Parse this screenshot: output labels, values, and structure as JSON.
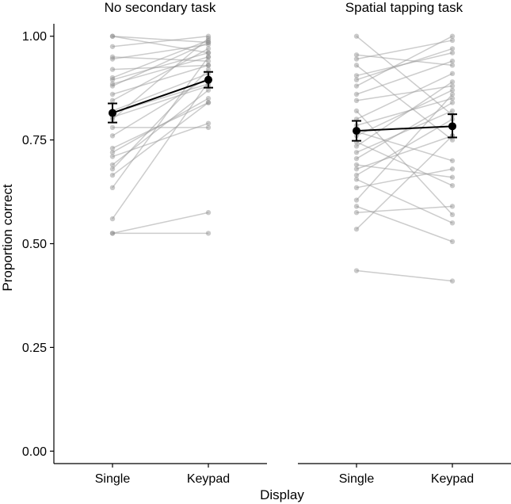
{
  "chart_data": {
    "type": "line",
    "x_title": "Display",
    "y_title": "Proportion correct",
    "categories": [
      "Single",
      "Keypad"
    ],
    "y_ticks": [
      0.0,
      0.25,
      0.5,
      0.75,
      1.0
    ],
    "y_tick_labels": [
      "0.00",
      "0.25",
      "0.50",
      "0.75",
      "1.00"
    ],
    "ylim": [
      -0.03,
      1.03
    ],
    "grid": false,
    "colors": {
      "subject": "#8a8a8a",
      "mean": "#000000"
    },
    "panels": [
      {
        "title": "No secondary task",
        "mean": {
          "Single": 0.815,
          "Keypad": 0.895
        },
        "error": {
          "Single": [
            0.792,
            0.838
          ],
          "Keypad": [
            0.876,
            0.914
          ]
        },
        "subjects": [
          [
            1.0,
            0.96
          ],
          [
            1.0,
            0.985
          ],
          [
            0.975,
            1.0
          ],
          [
            0.95,
            0.94
          ],
          [
            0.945,
            0.98
          ],
          [
            0.92,
            0.93
          ],
          [
            0.9,
            0.99
          ],
          [
            0.895,
            0.96
          ],
          [
            0.885,
            0.95
          ],
          [
            0.88,
            0.985
          ],
          [
            0.86,
            0.93
          ],
          [
            0.845,
            0.97
          ],
          [
            0.82,
            0.91
          ],
          [
            0.815,
            0.885
          ],
          [
            0.805,
            0.88
          ],
          [
            0.8,
            0.995
          ],
          [
            0.78,
            0.78
          ],
          [
            0.76,
            0.9
          ],
          [
            0.73,
            0.84
          ],
          [
            0.72,
            0.85
          ],
          [
            0.71,
            0.79
          ],
          [
            0.69,
            0.87
          ],
          [
            0.68,
            0.92
          ],
          [
            0.665,
            0.84
          ],
          [
            0.635,
            0.95
          ],
          [
            0.56,
            0.89
          ],
          [
            0.525,
            0.575
          ],
          [
            0.525,
            0.525
          ]
        ]
      },
      {
        "title": "Spatial tapping task",
        "mean": {
          "Single": 0.772,
          "Keypad": 0.783
        },
        "error": {
          "Single": [
            0.748,
            0.796
          ],
          "Keypad": [
            0.756,
            0.812
          ]
        },
        "subjects": [
          [
            1.0,
            0.81
          ],
          [
            0.955,
            0.93
          ],
          [
            0.945,
            0.99
          ],
          [
            0.93,
            0.75
          ],
          [
            0.905,
            0.96
          ],
          [
            0.895,
            0.97
          ],
          [
            0.88,
            1.0
          ],
          [
            0.86,
            0.94
          ],
          [
            0.845,
            0.88
          ],
          [
            0.82,
            0.57
          ],
          [
            0.8,
            0.91
          ],
          [
            0.785,
            0.85
          ],
          [
            0.77,
            0.7
          ],
          [
            0.76,
            0.87
          ],
          [
            0.745,
            0.64
          ],
          [
            0.735,
            0.89
          ],
          [
            0.72,
            0.82
          ],
          [
            0.705,
            0.84
          ],
          [
            0.69,
            0.66
          ],
          [
            0.68,
            0.76
          ],
          [
            0.665,
            0.8
          ],
          [
            0.655,
            0.55
          ],
          [
            0.635,
            0.68
          ],
          [
            0.605,
            0.86
          ],
          [
            0.59,
            0.505
          ],
          [
            0.575,
            0.59
          ],
          [
            0.535,
            0.76
          ],
          [
            0.435,
            0.41
          ]
        ]
      }
    ]
  }
}
